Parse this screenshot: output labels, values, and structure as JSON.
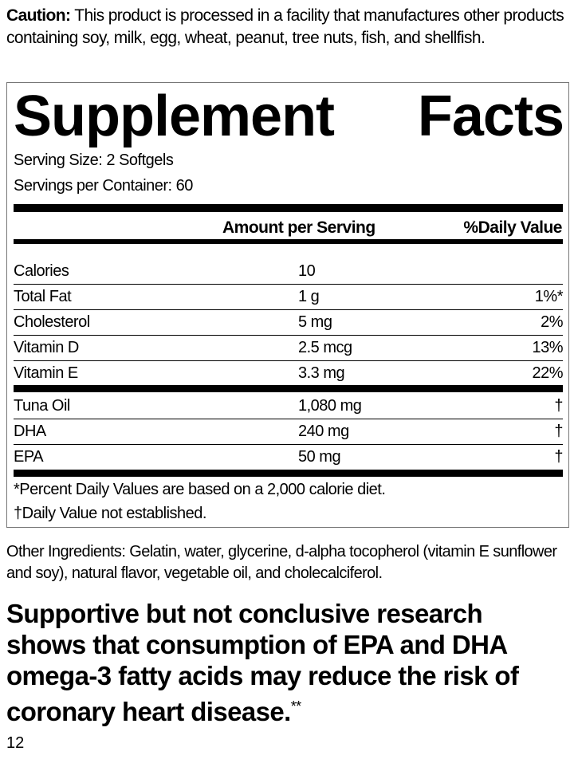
{
  "caution": {
    "label": "Caution:",
    "text": "This product is processed in a facility that manufactures other products containing soy, milk, egg, wheat, peanut, tree nuts, fish, and shellfish."
  },
  "facts": {
    "title_word1": "Supplement",
    "title_word2": "Facts",
    "serving_size": "Serving Size: 2 Softgels",
    "servings_per_container": "Servings per Container: 60",
    "col_amount": "Amount per Serving",
    "col_dv": "%Daily Value",
    "nutrients": [
      {
        "name": "Calories",
        "amount": "10",
        "dv": ""
      },
      {
        "name": "Total Fat",
        "amount": "1 g",
        "dv": "1%*"
      },
      {
        "name": "Cholesterol",
        "amount": "5 mg",
        "dv": "2%"
      },
      {
        "name": "Vitamin D",
        "amount": "2.5 mcg",
        "dv": "13%"
      },
      {
        "name": "Vitamin E",
        "amount": "3.3 mg",
        "dv": "22%"
      }
    ],
    "other": [
      {
        "name": "Tuna Oil",
        "amount": "1,080 mg",
        "dv": "†"
      },
      {
        "name": "DHA",
        "amount": "240 mg",
        "dv": "†"
      },
      {
        "name": "EPA",
        "amount": "50 mg",
        "dv": "†"
      }
    ],
    "footnote1": "*Percent Daily Values are based on a 2,000 calorie diet.",
    "footnote2": "†Daily Value not established."
  },
  "other_ingredients": "Other Ingredients: Gelatin, water, glycerine, d-alpha tocopherol (vitamin E sunflower and soy), natural flavor, vegetable oil, and cholecalciferol.",
  "claim": {
    "text": "Supportive but not conclusive research shows that consumption of EPA and DHA omega-3 fatty acids may reduce the risk of coronary heart disease.",
    "mark": "**"
  },
  "page_number": "12"
}
